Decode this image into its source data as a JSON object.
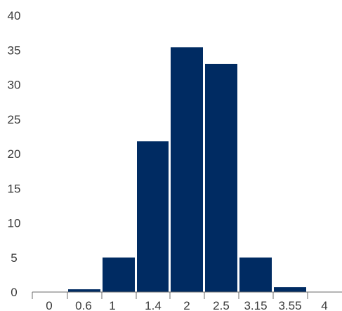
{
  "chart_data": {
    "type": "bar",
    "title": "",
    "xlabel": "",
    "ylabel": "",
    "x_tick_labels": [
      "0",
      "0.6",
      "1",
      "1.4",
      "2",
      "2.5",
      "3.15",
      "3.55",
      "4"
    ],
    "y_tick_labels": [
      "0",
      "5",
      "10",
      "15",
      "20",
      "25",
      "30",
      "35",
      "40"
    ],
    "ylim": [
      0,
      40
    ],
    "bars": [
      {
        "from": "0",
        "to": "0.6",
        "value": 0
      },
      {
        "from": "0.6",
        "to": "1",
        "value": 0.4
      },
      {
        "from": "1",
        "to": "1.4",
        "value": 5
      },
      {
        "from": "1.4",
        "to": "2",
        "value": 21.8
      },
      {
        "from": "2",
        "to": "2.5",
        "value": 35.4
      },
      {
        "from": "2.5",
        "to": "3.15",
        "value": 33
      },
      {
        "from": "3.15",
        "to": "3.55",
        "value": 5
      },
      {
        "from": "3.55",
        "to": "4",
        "value": 0.7
      }
    ],
    "bar_color": "#002b62",
    "grid": false,
    "legend": "none"
  }
}
